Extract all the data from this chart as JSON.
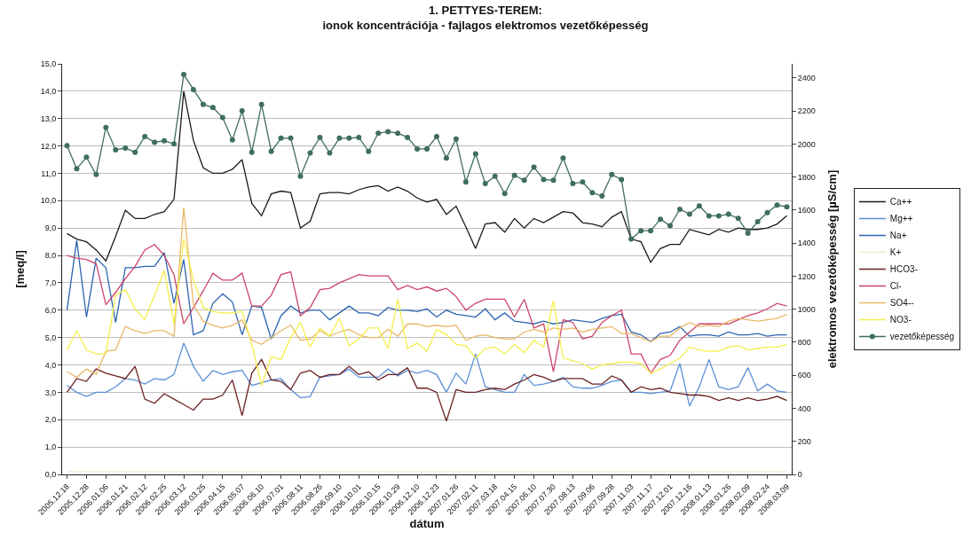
{
  "chart_data": {
    "type": "line",
    "title": "1. PETTYES-TEREM:",
    "subtitle": "ionok koncentrációja - fajlagos elektromos vezetőképesség",
    "xlabel": "dátum",
    "ylabel": "[meq/l]",
    "y2label": "elektromos vezetőképesség [µS/cm]",
    "categories": [
      "2005.12.18",
      null,
      "2005.12.28",
      null,
      "2006.01.06",
      null,
      "2006.01.21",
      null,
      "2006.02.12",
      null,
      "2006.02.25",
      null,
      "2006.03.12",
      null,
      "2006.03.25",
      null,
      "2006.04.15",
      null,
      "2006.05.07",
      null,
      "2006.06.10",
      null,
      "2006.07.01",
      null,
      "2006.08.11",
      null,
      "2006.08.26",
      null,
      "2006.09.10",
      null,
      "2006.10.01",
      null,
      "2006.10.15",
      null,
      "2006.10.29",
      null,
      "2006.12.10",
      null,
      "2006.12.23",
      null,
      "2007.01.26",
      null,
      "2007.02.11",
      null,
      "2007.03.18",
      null,
      "2007.04.15",
      null,
      "2007.06.10",
      null,
      "2007.07.30",
      null,
      "2007.08.13",
      null,
      "2007.09.06",
      null,
      "2007.09.28",
      null,
      "2007.11.03",
      null,
      "2007.11.17",
      null,
      "2007.12.01",
      null,
      "2007.12.16",
      null,
      "2008.01.13",
      null,
      "2008.01.26",
      null,
      "2008.02.09",
      null,
      "2008.02.24",
      null,
      "2008.03.09"
    ],
    "ylim": [
      0,
      15
    ],
    "yticks": [
      {
        "value": 0,
        "label": "0,0"
      },
      {
        "value": 1,
        "label": "1,0"
      },
      {
        "value": 2,
        "label": "2,0"
      },
      {
        "value": 3,
        "label": "3,0"
      },
      {
        "value": 4,
        "label": "4,0"
      },
      {
        "value": 5,
        "label": "5,0"
      },
      {
        "value": 6,
        "label": "6,0"
      },
      {
        "value": 7,
        "label": "7,0"
      },
      {
        "value": 8,
        "label": "8,0"
      },
      {
        "value": 9,
        "label": "9,0"
      },
      {
        "value": 10,
        "label": "10,0"
      },
      {
        "value": 11,
        "label": "11,0"
      },
      {
        "value": 12,
        "label": "12,0"
      },
      {
        "value": 13,
        "label": "13,0"
      },
      {
        "value": 14,
        "label": "14,0"
      },
      {
        "value": 15,
        "label": "15,0"
      }
    ],
    "y2lim": [
      0,
      2485
    ],
    "y2ticks": [
      0,
      200,
      400,
      600,
      800,
      1000,
      1200,
      1400,
      1600,
      1800,
      2000,
      2200,
      2400
    ],
    "grid": "y",
    "legend": "right",
    "line_style": "solid",
    "series": [
      {
        "name": "Ca++",
        "color": "#1a1a1a",
        "values": [
          8.8,
          8.6,
          8.5,
          8.2,
          7.8,
          8.7,
          9.65,
          9.35,
          9.35,
          9.5,
          9.6,
          10.05,
          14.0,
          12.2,
          11.2,
          11.0,
          11.0,
          11.15,
          11.5,
          9.9,
          9.45,
          10.25,
          10.35,
          10.3,
          9.0,
          9.25,
          10.25,
          10.3,
          10.3,
          10.25,
          10.4,
          10.5,
          10.55,
          10.35,
          10.5,
          10.35,
          10.1,
          9.95,
          10.05,
          9.5,
          9.8,
          9.05,
          8.25,
          9.15,
          9.2,
          8.85,
          9.35,
          9.0,
          9.35,
          9.2,
          9.4,
          9.6,
          9.55,
          9.2,
          9.15,
          9.05,
          9.4,
          9.6,
          8.6,
          8.5,
          7.75,
          8.25,
          8.4,
          8.4,
          8.95,
          8.85,
          8.75,
          8.95,
          8.85,
          9.0,
          8.95,
          8.95,
          9.0,
          9.15,
          9.45
        ]
      },
      {
        "name": "Mg++",
        "color": "#5b8fd6",
        "values": [
          3.25,
          3.0,
          2.85,
          3.0,
          3.0,
          3.2,
          3.5,
          3.45,
          3.3,
          3.5,
          3.45,
          3.65,
          4.8,
          3.95,
          3.4,
          3.8,
          3.65,
          3.75,
          3.8,
          3.25,
          3.35,
          3.45,
          3.5,
          3.1,
          2.8,
          2.85,
          3.55,
          3.6,
          3.65,
          3.85,
          3.55,
          3.55,
          3.55,
          3.85,
          3.6,
          3.8,
          3.7,
          3.8,
          3.65,
          3.0,
          3.7,
          3.3,
          4.4,
          3.2,
          3.1,
          3.0,
          3.0,
          3.65,
          3.25,
          3.3,
          3.4,
          3.55,
          3.2,
          3.15,
          3.15,
          3.25,
          3.4,
          3.45,
          3.0,
          3.0,
          2.95,
          3.0,
          3.05,
          4.05,
          2.5,
          3.2,
          4.2,
          3.2,
          3.1,
          3.2,
          3.9,
          3.05,
          3.3,
          3.05,
          3.0
        ]
      },
      {
        "name": "Na+",
        "color": "#2c64b0",
        "values": [
          6.0,
          8.55,
          5.75,
          7.9,
          7.55,
          5.55,
          7.55,
          7.55,
          7.6,
          7.6,
          8.1,
          6.25,
          7.85,
          5.1,
          5.25,
          6.25,
          6.6,
          6.3,
          5.1,
          6.15,
          6.1,
          4.95,
          5.8,
          6.15,
          5.9,
          6.0,
          6.0,
          5.65,
          5.9,
          6.15,
          5.9,
          5.9,
          5.8,
          6.1,
          6.0,
          6.0,
          5.95,
          6.05,
          5.75,
          6.0,
          5.85,
          5.8,
          5.75,
          6.05,
          5.65,
          5.9,
          5.6,
          5.55,
          5.5,
          5.6,
          5.5,
          5.55,
          5.65,
          5.6,
          5.55,
          5.7,
          5.8,
          5.85,
          5.2,
          5.1,
          4.85,
          5.15,
          5.2,
          5.4,
          5.05,
          5.1,
          5.1,
          5.05,
          5.2,
          5.1,
          5.1,
          5.15,
          5.05,
          5.1,
          5.1
        ]
      },
      {
        "name": "K+",
        "color": "#efe9cf",
        "values": [
          0.1,
          0.1,
          0.1,
          0.1,
          0.1,
          0.1,
          0.1,
          0.1,
          0.1,
          0.1,
          0.1,
          0.1,
          0.1,
          0.1,
          0.1,
          0.1,
          0.1,
          0.1,
          0.1,
          0.1,
          0.1,
          0.1,
          0.1,
          0.1,
          0.1,
          0.1,
          0.1,
          0.1,
          0.1,
          0.1,
          0.1,
          0.1,
          0.1,
          0.1,
          0.1,
          0.1,
          0.1,
          0.1,
          0.1,
          0.1,
          0.1,
          0.1,
          0.1,
          0.1,
          0.1,
          0.1,
          0.1,
          0.1,
          0.1,
          0.1,
          0.1,
          0.1,
          0.1,
          0.1,
          0.1,
          0.1,
          0.1,
          0.1,
          0.1,
          0.1,
          0.1,
          0.1,
          0.1,
          0.1,
          0.1,
          0.1,
          0.1,
          0.1,
          0.1,
          0.1,
          0.1,
          0.1,
          0.1,
          0.1,
          0.1
        ]
      },
      {
        "name": "HCO3-",
        "color": "#6b1f1f",
        "values": [
          3.0,
          3.5,
          3.4,
          3.85,
          3.7,
          3.6,
          3.5,
          3.95,
          2.75,
          2.6,
          2.95,
          2.75,
          2.55,
          2.35,
          2.75,
          2.75,
          2.9,
          3.45,
          2.15,
          3.7,
          4.2,
          3.45,
          3.4,
          3.1,
          3.7,
          3.8,
          3.55,
          3.65,
          3.65,
          3.95,
          3.65,
          3.75,
          3.45,
          3.65,
          3.65,
          3.9,
          3.15,
          3.15,
          3.0,
          1.95,
          3.1,
          3.0,
          3.0,
          3.1,
          3.15,
          3.1,
          3.3,
          3.45,
          3.65,
          3.55,
          3.4,
          3.5,
          3.5,
          3.5,
          3.3,
          3.3,
          3.6,
          3.45,
          3.0,
          3.2,
          3.1,
          3.15,
          3.0,
          2.95,
          2.9,
          2.9,
          2.85,
          2.7,
          2.8,
          2.7,
          2.8,
          2.7,
          2.75,
          2.85,
          2.7
        ]
      },
      {
        "name": "Cl-",
        "color": "#cc4466",
        "values": [
          8.0,
          7.9,
          7.85,
          7.7,
          6.2,
          6.65,
          7.15,
          7.6,
          8.2,
          8.4,
          8.0,
          7.3,
          5.5,
          6.1,
          6.7,
          7.35,
          7.1,
          7.1,
          7.35,
          6.15,
          6.15,
          6.55,
          7.3,
          7.4,
          5.8,
          6.1,
          6.75,
          6.8,
          7.0,
          7.15,
          7.3,
          7.25,
          7.25,
          7.25,
          6.75,
          6.9,
          6.75,
          6.85,
          6.7,
          6.8,
          6.5,
          6.0,
          6.25,
          6.4,
          6.4,
          6.4,
          5.75,
          6.4,
          5.35,
          5.5,
          3.75,
          5.65,
          5.55,
          4.95,
          5.05,
          5.55,
          5.8,
          6.0,
          4.4,
          4.4,
          3.7,
          4.2,
          4.35,
          4.9,
          5.2,
          5.5,
          5.5,
          5.5,
          5.5,
          5.65,
          5.8,
          5.9,
          6.05,
          6.25,
          6.15
        ]
      },
      {
        "name": "SO4--",
        "color": "#e8b868",
        "values": [
          3.75,
          3.55,
          3.85,
          3.65,
          4.5,
          4.55,
          5.4,
          5.25,
          5.15,
          5.25,
          5.25,
          5.05,
          9.75,
          6.2,
          5.6,
          5.45,
          5.35,
          5.45,
          5.65,
          4.9,
          4.75,
          5.0,
          5.25,
          5.45,
          4.9,
          4.95,
          5.25,
          5.05,
          5.2,
          5.3,
          5.1,
          5.0,
          5.0,
          5.3,
          5.05,
          5.5,
          5.5,
          5.4,
          5.45,
          5.4,
          5.45,
          4.9,
          5.05,
          5.1,
          5.0,
          4.95,
          4.95,
          5.2,
          5.3,
          5.2,
          5.35,
          5.3,
          5.35,
          5.2,
          5.3,
          5.35,
          5.4,
          5.15,
          5.15,
          5.0,
          4.85,
          5.05,
          5.05,
          5.35,
          5.55,
          5.4,
          5.45,
          5.4,
          5.6,
          5.7,
          5.65,
          5.6,
          5.65,
          5.7,
          5.85
        ]
      },
      {
        "name": "NO3-",
        "color": "#f4ee4a",
        "values": [
          4.55,
          5.25,
          4.55,
          4.4,
          4.4,
          6.55,
          6.75,
          6.05,
          5.65,
          6.55,
          7.45,
          5.5,
          8.6,
          7.1,
          6.1,
          5.95,
          5.9,
          5.9,
          5.95,
          4.75,
          3.25,
          4.3,
          4.2,
          5.0,
          5.55,
          4.65,
          5.35,
          5.05,
          5.7,
          4.7,
          4.95,
          5.35,
          5.35,
          4.6,
          6.4,
          4.6,
          4.8,
          4.5,
          5.3,
          5.1,
          4.75,
          4.7,
          4.25,
          4.6,
          4.65,
          4.4,
          4.75,
          4.45,
          4.9,
          4.65,
          6.35,
          4.25,
          4.15,
          4.05,
          3.85,
          4.0,
          4.05,
          4.1,
          4.1,
          4.05,
          3.7,
          3.85,
          4.05,
          4.25,
          4.65,
          4.55,
          4.5,
          4.5,
          4.65,
          4.7,
          4.55,
          4.6,
          4.65,
          4.65,
          4.75
        ]
      },
      {
        "name": "vezetőképesség",
        "color": "#3f6e5e",
        "axis": "y2",
        "marker": "circle",
        "values": [
          1990,
          1850,
          1920,
          1815,
          2100,
          1965,
          1975,
          1950,
          2045,
          2010,
          2020,
          2000,
          2420,
          2330,
          2240,
          2220,
          2160,
          2025,
          2200,
          1950,
          2240,
          1955,
          2035,
          2035,
          1805,
          1945,
          2040,
          1945,
          2035,
          2035,
          2040,
          1955,
          2065,
          2075,
          2065,
          2040,
          1970,
          1970,
          2045,
          1915,
          2030,
          1770,
          1940,
          1760,
          1805,
          1700,
          1810,
          1780,
          1860,
          1785,
          1780,
          1915,
          1760,
          1770,
          1705,
          1685,
          1815,
          1785,
          1425,
          1475,
          1475,
          1545,
          1505,
          1605,
          1575,
          1625,
          1565,
          1565,
          1575,
          1550,
          1460,
          1530,
          1585,
          1630,
          1620
        ]
      }
    ]
  }
}
